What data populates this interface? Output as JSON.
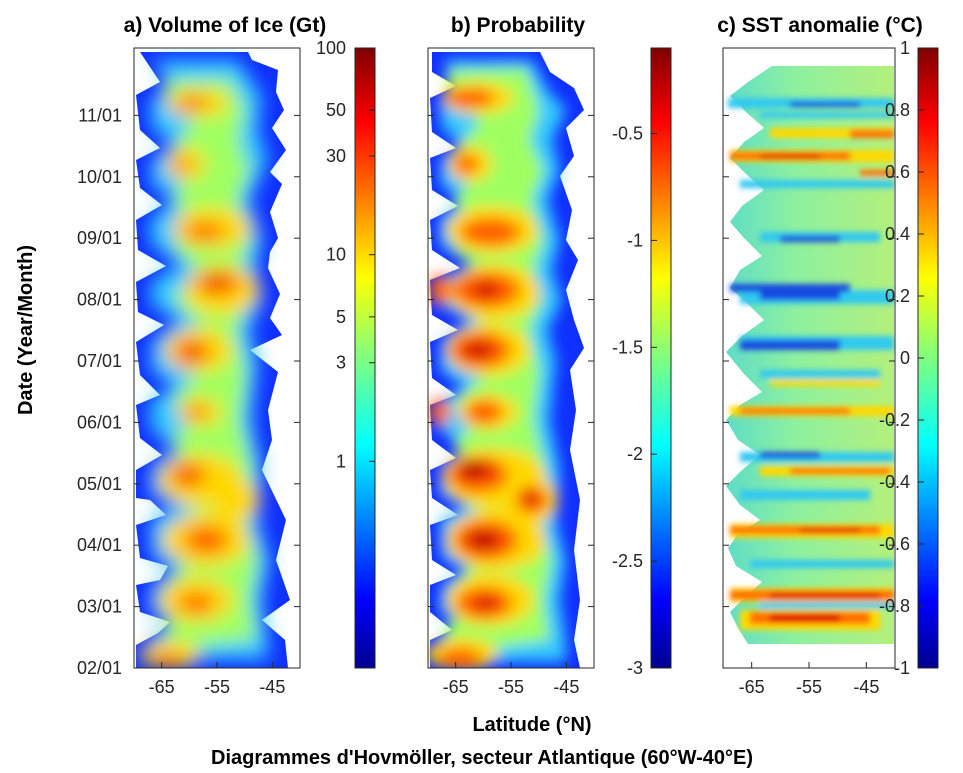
{
  "figure": {
    "caption": "Diagrammes d'Hovmöller, secteur Atlantique (60°W-40°E)",
    "xlabel": "Latitude (°N)",
    "ylabel": "Date (Year/Month)"
  },
  "chart_data": [
    {
      "type": "heatmap",
      "title": "a) Volume of Ice (Gt)",
      "xlabel": "Latitude (°N)",
      "ylabel": "Date (Year/Month)",
      "xticks": [
        "-65",
        "-55",
        "-45"
      ],
      "yticks": [
        "02/01",
        "03/01",
        "04/01",
        "05/01",
        "06/01",
        "07/01",
        "08/01",
        "09/01",
        "10/01",
        "11/01"
      ],
      "xlim": [
        -70,
        -40
      ],
      "colorbar": {
        "scale": "log",
        "range": [
          0.1,
          100
        ],
        "ticks": [
          "1",
          "3",
          "5",
          "10",
          "30",
          "50",
          "100"
        ],
        "colormap": "jet"
      }
    },
    {
      "type": "heatmap",
      "title": "b) Probability",
      "xticks": [
        "-65",
        "-55",
        "-45"
      ],
      "xlim": [
        -70,
        -40
      ],
      "colorbar": {
        "scale": "linear",
        "range": [
          -3,
          -0.1
        ],
        "ticks": [
          "-0.5",
          "-1",
          "-1.5",
          "-2",
          "-2.5",
          "-3"
        ],
        "colormap": "jet"
      }
    },
    {
      "type": "heatmap",
      "title": "c) SST anomalie (°C)",
      "xticks": [
        "-65",
        "-55",
        "-45"
      ],
      "xlim": [
        -70,
        -40
      ],
      "colorbar": {
        "scale": "linear",
        "range": [
          -1,
          1
        ],
        "ticks": [
          "1",
          "0.8",
          "0.6",
          "0.4",
          "0.2",
          "0",
          "-0.2",
          "-0.4",
          "-0.6",
          "-0.8",
          "-1"
        ],
        "colormap": "jet"
      }
    }
  ]
}
